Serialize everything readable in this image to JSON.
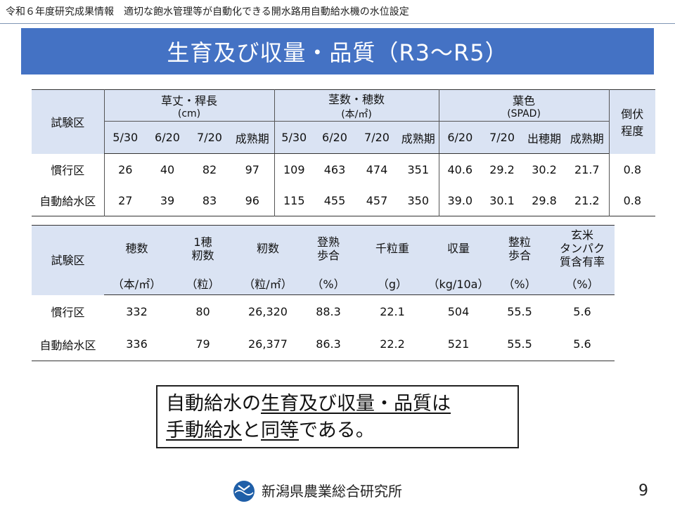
{
  "header": {
    "text": "令和６年度研究成果情報　適切な飽水管理等が自動化できる開水路用自動給水機の水位設定"
  },
  "title": "生育及び収量・品質（R3～R5）",
  "table1": {
    "plot_header": "試験区",
    "groups": [
      {
        "label": "草丈・稈長",
        "unit": "(cm)",
        "dates": [
          "5/30",
          "6/20",
          "7/20",
          "成熟期"
        ]
      },
      {
        "label": "茎数・穂数",
        "unit": "(本/㎡)",
        "dates": [
          "5/30",
          "6/20",
          "7/20",
          "成熟期"
        ]
      },
      {
        "label": "葉色",
        "unit": "(SPAD)",
        "dates": [
          "6/20",
          "7/20",
          "出穂期",
          "成熟期"
        ]
      }
    ],
    "lodging_header": [
      "倒伏",
      "程度"
    ],
    "rows": [
      {
        "plot": "慣行区",
        "values": [
          "26",
          "40",
          "82",
          "97",
          "109",
          "463",
          "474",
          "351",
          "40.6",
          "29.2",
          "30.2",
          "21.7",
          "0.8"
        ]
      },
      {
        "plot": "自動給水区",
        "values": [
          "27",
          "39",
          "83",
          "96",
          "115",
          "455",
          "457",
          "350",
          "39.0",
          "30.1",
          "29.8",
          "21.2",
          "0.8"
        ]
      }
    ]
  },
  "table2": {
    "headers": [
      {
        "label": "試験区",
        "unit": ""
      },
      {
        "label": "穂数",
        "unit": "（本/㎡）"
      },
      {
        "label": "1穂\n籾数",
        "unit": "（粒）"
      },
      {
        "label": "籾数",
        "unit": "（粒/㎡）"
      },
      {
        "label": "登熟\n歩合",
        "unit": "（%）"
      },
      {
        "label": "千粒重",
        "unit": "（g）"
      },
      {
        "label": "収量",
        "unit": "（kg/10a）"
      },
      {
        "label": "整粒\n歩合",
        "unit": "（%）"
      },
      {
        "label": "玄米\nタンパク\n質含有率",
        "unit": "（%）"
      }
    ],
    "rows": [
      {
        "plot": "慣行区",
        "values": [
          "332",
          "80",
          "26,320",
          "88.3",
          "22.1",
          "504",
          "55.5",
          "5.6"
        ]
      },
      {
        "plot": "自動給水区",
        "values": [
          "336",
          "79",
          "26,377",
          "86.3",
          "22.2",
          "521",
          "55.5",
          "5.6"
        ]
      }
    ]
  },
  "summary": {
    "line1_prefix": "自動給水の",
    "line1_underlined": "生育及び収量・品質は",
    "line2_underlined_a": "手動給水",
    "line2_middle": "と",
    "line2_underlined_b": "同等",
    "line2_suffix": "である。"
  },
  "footer": {
    "org": "新潟県農業総合研究所",
    "logo_icon": "niigata-prefecture-emblem-icon",
    "logo_color": "#1f5fa8",
    "page_number": "9"
  },
  "colors": {
    "title_bar": "#4472c4",
    "table_header_fill": "#dae3f3"
  }
}
